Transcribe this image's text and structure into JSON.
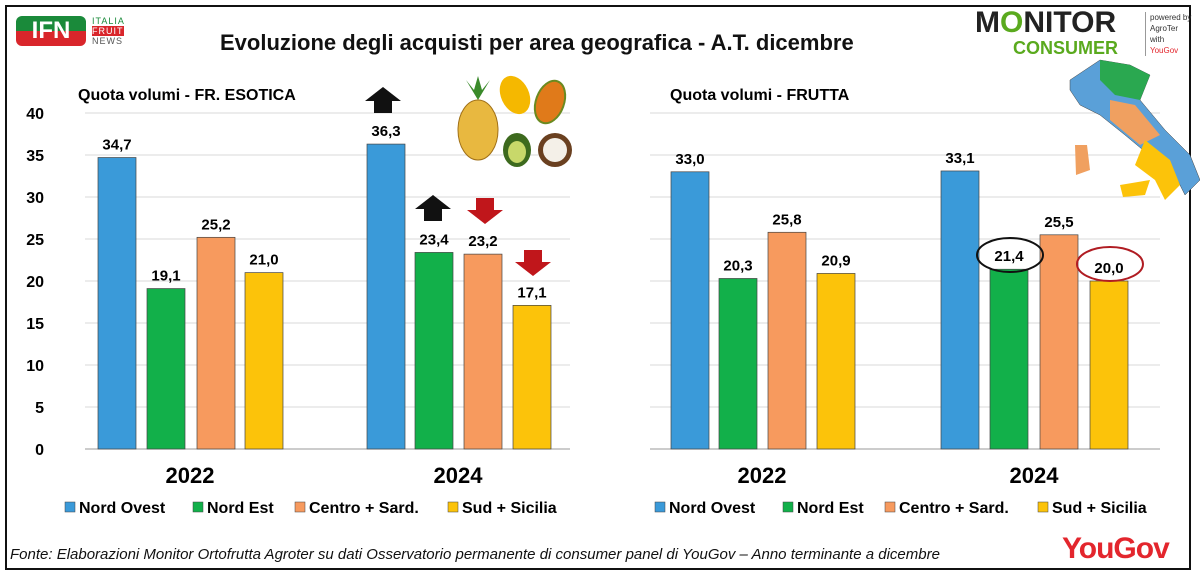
{
  "title": "Evoluzione degli acquisti per area geografica - A.T. dicembre",
  "footnote": "Fonte: Elaborazioni Monitor Ortofrutta Agroter su dati Osservatorio permanente di consumer panel di YouGov – Anno terminante a dicembre",
  "logos": {
    "ifn": "IFN ITALIA FRUIT NEWS",
    "monitor": "MONITOR CONSUMER powered by AgroTer with YouGov",
    "yougov": "YouGov"
  },
  "colors": {
    "Nord Ovest": "#3a9ad9",
    "Nord Est": "#12b04a",
    "Centro + Sard.": "#f79a5e",
    "Sud + Sicilia": "#fcc30a"
  },
  "chart_data": [
    {
      "type": "bar",
      "title": "Quota volumi - FR. ESOTICA",
      "categories": [
        "2022",
        "2024"
      ],
      "ylim": [
        0,
        40
      ],
      "yticks": [
        "0",
        "5",
        "10",
        "15",
        "20",
        "25",
        "30",
        "35",
        "40"
      ],
      "legend": "bottom",
      "series": [
        {
          "name": "Nord Ovest",
          "values": [
            34.7,
            36.3
          ],
          "labels": [
            "34,7",
            "36,3"
          ]
        },
        {
          "name": "Nord Est",
          "values": [
            19.1,
            23.4
          ],
          "labels": [
            "19,1",
            "23,4"
          ]
        },
        {
          "name": "Centro + Sard.",
          "values": [
            25.2,
            23.2
          ],
          "labels": [
            "25,2",
            "23,2"
          ]
        },
        {
          "name": "Sud + Sicilia",
          "values": [
            21.0,
            17.1
          ],
          "labels": [
            "21,0",
            "17,1"
          ]
        }
      ],
      "annotations": {
        "up_arrows": [
          "2024 Nord Ovest",
          "2024 Nord Est"
        ],
        "down_arrows": [
          "2024 Centro + Sard.",
          "2024 Sud + Sicilia"
        ]
      }
    },
    {
      "type": "bar",
      "title": "Quota volumi - FRUTTA",
      "categories": [
        "2022",
        "2024"
      ],
      "ylim": [
        0,
        40
      ],
      "legend": "bottom",
      "series": [
        {
          "name": "Nord Ovest",
          "values": [
            33.0,
            33.1
          ],
          "labels": [
            "33,0",
            "33,1"
          ]
        },
        {
          "name": "Nord Est",
          "values": [
            20.3,
            21.4
          ],
          "labels": [
            "20,3",
            "21,4"
          ]
        },
        {
          "name": "Centro + Sard.",
          "values": [
            25.8,
            25.5
          ],
          "labels": [
            "25,8",
            "25,5"
          ]
        },
        {
          "name": "Sud + Sicilia",
          "values": [
            20.9,
            20.0
          ],
          "labels": [
            "20,9",
            "20,0"
          ]
        }
      ],
      "annotations": {
        "circled": [
          "2024 Nord Est",
          "2024 Sud + Sicilia"
        ]
      }
    }
  ]
}
